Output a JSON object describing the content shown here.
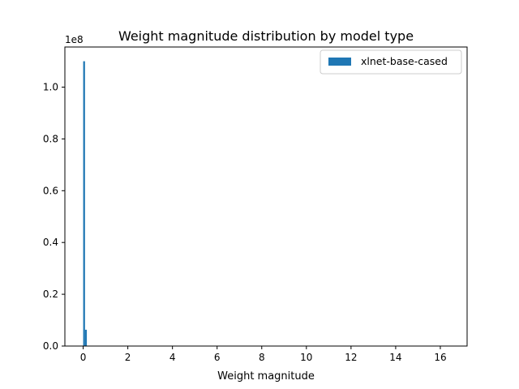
{
  "chart_data": {
    "type": "bar",
    "title": "Weight magnitude distribution by model type",
    "xlabel": "Weight magnitude",
    "ylabel": "",
    "y_offset_label": "1e8",
    "xlim": [
      -0.82,
      17.2
    ],
    "ylim": [
      0,
      1.155
    ],
    "x_ticks": [
      0,
      2,
      4,
      6,
      8,
      10,
      12,
      14,
      16
    ],
    "x_tick_labels": [
      "0",
      "2",
      "4",
      "6",
      "8",
      "10",
      "12",
      "14",
      "16"
    ],
    "y_ticks": [
      0.0,
      0.2,
      0.4,
      0.6,
      0.8,
      1.0
    ],
    "y_tick_labels": [
      "0.0",
      "0.2",
      "0.4",
      "0.6",
      "0.8",
      "1.0"
    ],
    "bin_width": 0.082,
    "series": [
      {
        "name": "xlnet-base-cased",
        "color": "#1f77b4",
        "bins": [
          {
            "x": 0.0,
            "value": 1.1
          },
          {
            "x": 0.082,
            "value": 0.063
          },
          {
            "x": 0.164,
            "value": 0.0
          }
        ]
      }
    ],
    "legend_position": "upper right",
    "grid": false
  }
}
